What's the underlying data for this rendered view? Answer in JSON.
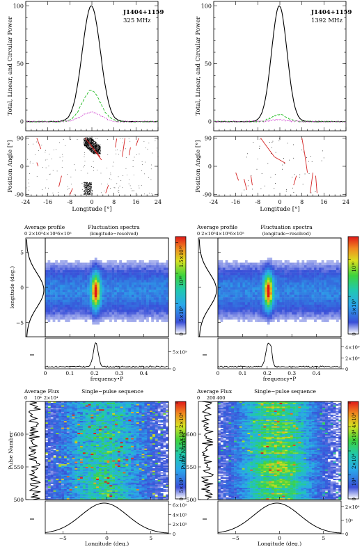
{
  "chart_data": [
    {
      "type": "line",
      "panel": "polarization-profile-325",
      "annotation_line1": "J1404+1159",
      "annotation_line2": "325 MHz",
      "ylabel": "Total, Linear, and Circular Power",
      "xlabel": "Longitude [°]",
      "xlim": [
        -24,
        24
      ],
      "ylim": [
        -8,
        104
      ],
      "yticks": [
        "0",
        "50",
        "100"
      ],
      "xticks": [
        "-24",
        "-16",
        "-8",
        "0",
        "8",
        "16",
        "24"
      ],
      "series": [
        {
          "kind": "total",
          "color": "#000000",
          "peak": 100,
          "width": 3.3
        },
        {
          "kind": "linear",
          "color": "#22bb22",
          "peak": 27,
          "width": 3.3
        },
        {
          "kind": "circular",
          "color": "#cc33cc",
          "peak": 8,
          "width": 3.5
        }
      ],
      "pa": {
        "ylabel": "Position Angle [°]",
        "ylim": [
          -95,
          95
        ],
        "yticks": [
          "-90",
          "0",
          "90"
        ],
        "fit_color": "#d42020",
        "cloud": "dense"
      }
    },
    {
      "type": "line",
      "panel": "polarization-profile-1392",
      "annotation_line1": "J1404+1159",
      "annotation_line2": "1392 MHz",
      "ylabel": "Total, Linear, and Circular Power",
      "xlabel": "Longitude [°]",
      "xlim": [
        -24,
        24
      ],
      "ylim": [
        -8,
        104
      ],
      "yticks": [
        "0",
        "50",
        "100"
      ],
      "xticks": [
        "-24",
        "-16",
        "-8",
        "0",
        "8",
        "16",
        "24"
      ],
      "series": [
        {
          "kind": "total",
          "color": "#000000",
          "peak": 100,
          "width": 2.8
        },
        {
          "kind": "linear",
          "color": "#22bb22",
          "peak": 6,
          "width": 2.8
        },
        {
          "kind": "circular",
          "color": "#cc33cc",
          "peak": 1.5,
          "width": 2.8
        }
      ],
      "pa": {
        "ylabel": "Position Angle [°]",
        "ylim": [
          -95,
          95
        ],
        "yticks": [
          "-90",
          "0",
          "90"
        ],
        "fit_color": "#d42020",
        "cloud": "sparse"
      }
    },
    {
      "type": "heatmap",
      "panel": "lrfs-325",
      "title_left": "Average profile",
      "title_main": "Fluctuation spectra",
      "title_sub": "(longitude−resolved)",
      "top_ticks": "0  2×10⁵4×10⁵6×10⁵",
      "ylabel": "longitude (deg.)",
      "yticks": [
        "−5",
        "0",
        "5"
      ],
      "xlabel": "frequency•P",
      "xticks": [
        "0",
        "0.1",
        "0.2",
        "0.3",
        "0.4"
      ],
      "ylim": [
        -7,
        7
      ],
      "xlim": [
        0,
        0.5
      ],
      "feature_freq": 0.205,
      "colorbar_ticks": [
        "0",
        "5×10⁹",
        "10¹⁰",
        "1.5×10¹⁰"
      ],
      "bottom_ticks": [
        "0",
        "5×10⁹"
      ]
    },
    {
      "type": "heatmap",
      "panel": "lrfs-1392",
      "title_left": "Average profile",
      "title_main": "Fluctuation spectra",
      "title_sub": "(longitude−resolved)",
      "top_ticks": "0  2×10⁵4×10⁵6×10⁵",
      "xlabel": "frequency•P",
      "xticks": [
        "0",
        "0.1",
        "0.2",
        "0.3",
        "0.4"
      ],
      "ylim": [
        -7,
        7
      ],
      "xlim": [
        0,
        0.5
      ],
      "feature_freq": 0.205,
      "colorbar_ticks": [
        "0",
        "5×10⁹",
        "10¹⁰"
      ],
      "bottom_ticks": [
        "0",
        "2×10⁹",
        "4×10⁹"
      ]
    },
    {
      "type": "heatmap",
      "panel": "single-pulse-325",
      "title_left": "Average Flux",
      "title_main": "Single−pulse sequence",
      "top_ticks": [
        "0",
        "10⁴",
        "2×10⁴"
      ],
      "ylabel": "Pulse Number",
      "yticks": [
        "500",
        "550",
        "600"
      ],
      "ylim": [
        500,
        650
      ],
      "xlabel": "Longitude (deg.)",
      "xticks": [
        "−5",
        "0",
        "5"
      ],
      "xlim": [
        -7,
        7
      ],
      "colorbar_ticks": [
        "0",
        "5×10³",
        "10⁴",
        "1.5×10⁴",
        "2×10⁴"
      ],
      "bottom_ticks": [
        "0",
        "2×10⁵",
        "4×10⁵",
        "6×10⁵"
      ]
    },
    {
      "type": "heatmap",
      "panel": "single-pulse-1392",
      "title_left": "Average Flux",
      "title_main": "Single−pulse sequence",
      "top_ticks": [
        "0",
        "200",
        "400"
      ],
      "ylabel": "Pulse Number",
      "yticks": [
        "500",
        "550",
        "600"
      ],
      "ylim": [
        500,
        650
      ],
      "xlabel": "Longitude (deg.)",
      "xticks": [
        "−5",
        "0",
        "5"
      ],
      "xlim": [
        -7,
        7
      ],
      "colorbar_ticks": [
        "0",
        "10⁴",
        "2×10⁴",
        "3×10⁴",
        "4×10⁴"
      ],
      "bottom_ticks": [
        "0",
        "10⁴",
        "2×10⁴"
      ]
    }
  ]
}
